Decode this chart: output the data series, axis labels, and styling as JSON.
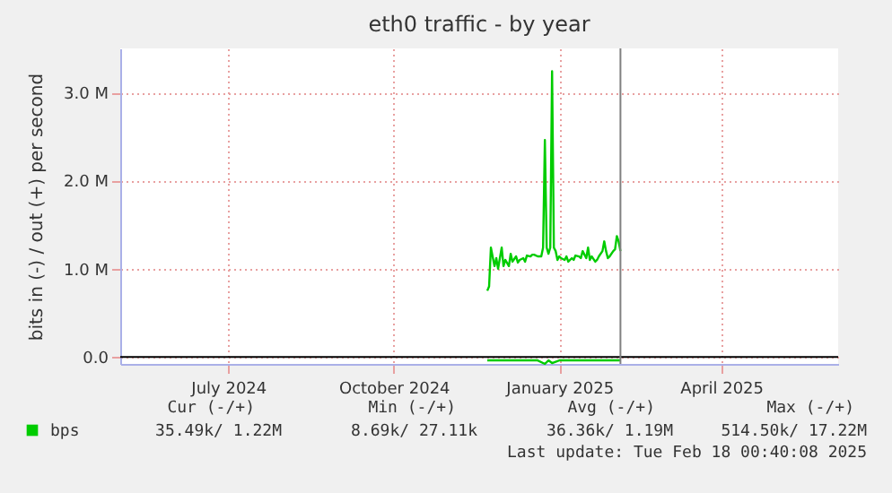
{
  "chart_data": {
    "type": "line",
    "title": "eth0 traffic - by year",
    "ylabel": "bits in (-) / out (+) per second",
    "x": [
      "2024-12-06",
      "2024-12-07",
      "2024-12-08",
      "2024-12-10",
      "2024-12-11",
      "2024-12-12",
      "2024-12-14",
      "2024-12-15",
      "2024-12-16",
      "2024-12-18",
      "2024-12-19",
      "2024-12-20",
      "2024-12-22",
      "2024-12-23",
      "2024-12-24",
      "2024-12-26",
      "2024-12-27",
      "2024-12-28",
      "2024-12-30",
      "2024-12-31",
      "2025-01-01",
      "2025-01-03",
      "2025-01-04",
      "2025-01-05",
      "2025-01-06",
      "2025-01-07",
      "2025-01-08",
      "2025-01-09",
      "2025-01-10",
      "2025-01-11",
      "2025-01-12",
      "2025-01-13",
      "2025-01-14",
      "2025-01-15",
      "2025-01-16",
      "2025-01-18",
      "2025-01-19",
      "2025-01-20",
      "2025-01-22",
      "2025-01-23",
      "2025-01-24",
      "2025-01-26",
      "2025-01-27",
      "2025-01-28",
      "2025-01-30",
      "2025-01-31",
      "2025-02-01",
      "2025-02-02",
      "2025-02-04",
      "2025-02-05",
      "2025-02-06",
      "2025-02-08",
      "2025-02-09",
      "2025-02-10",
      "2025-02-11",
      "2025-02-12",
      "2025-02-14",
      "2025-02-15",
      "2025-02-16",
      "2025-02-17",
      "2025-02-18"
    ],
    "series": [
      {
        "name": "bps",
        "color": "#00cc00",
        "values": [
          750000,
          800000,
          1240000,
          1030000,
          1120000,
          1000000,
          1240000,
          1030000,
          1100000,
          1030000,
          1170000,
          1080000,
          1140000,
          1070000,
          1100000,
          1120000,
          1080000,
          1150000,
          1140000,
          1160000,
          1160000,
          1140000,
          1140000,
          1140000,
          1240000,
          2460000,
          1240000,
          1170000,
          1240000,
          3240000,
          1240000,
          1200000,
          1100000,
          1140000,
          1120000,
          1100000,
          1140000,
          1080000,
          1120000,
          1100000,
          1150000,
          1140000,
          1120000,
          1200000,
          1120000,
          1240000,
          1100000,
          1140000,
          1080000,
          1100000,
          1140000,
          1200000,
          1310000,
          1200000,
          1120000,
          1140000,
          1200000,
          1220000,
          1370000,
          1310000,
          1200000
        ]
      },
      {
        "color": "#00cc00",
        "x": [
          "2024-12-06",
          "2024-12-20",
          "2025-01-03",
          "2025-01-07",
          "2025-01-09",
          "2025-01-11",
          "2025-01-15",
          "2025-01-31",
          "2025-02-18"
        ],
        "values": [
          -40000,
          -40000,
          -40000,
          -80000,
          -40000,
          -70000,
          -40000,
          -40000,
          -40000
        ]
      }
    ],
    "xlim": [
      "2024-05-16",
      "2025-06-19"
    ],
    "xticks": [
      {
        "value": "2024-07-15",
        "label": "July 2024"
      },
      {
        "value": "2024-10-15",
        "label": "October 2024"
      },
      {
        "value": "2025-01-15",
        "label": "January 2025"
      },
      {
        "value": "2025-04-15",
        "label": "April 2025"
      }
    ],
    "ylim": [
      -80000,
      3500000
    ],
    "yticks": [
      {
        "value": 0,
        "label": "0.0"
      },
      {
        "value": 1000000,
        "label": "1.0 M"
      },
      {
        "value": 2000000,
        "label": "2.0 M"
      },
      {
        "value": 3000000,
        "label": "3.0 M"
      }
    ],
    "ref_lines": [
      {
        "axis": "y",
        "value": 0,
        "color": "#000000"
      },
      {
        "axis": "x",
        "value": "2025-02-18",
        "color": "#808080"
      }
    ],
    "grid": true,
    "legend": "bottom left",
    "annotations": [
      "Cur (-/+)",
      "Min (-/+)",
      "Avg (-/+)",
      "Max (-/+)",
      "35.49k/   1.22M",
      "8.69k/  27.11k",
      "36.36k/   1.19M",
      "514.50k/  17.22M",
      "Last update: Tue Feb 18 00:40:08 2025"
    ]
  }
}
